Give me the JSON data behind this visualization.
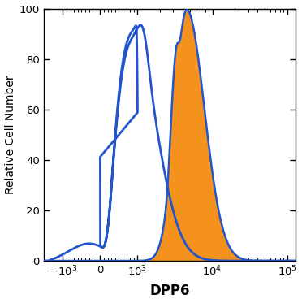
{
  "title": "",
  "xlabel": "DPP6",
  "ylabel": "Relative Cell Number",
  "ylim": [
    0,
    100
  ],
  "linthresh": 1000,
  "linscale": 0.45,
  "blue_color": "#2255cc",
  "orange_color": "#f5921e",
  "blue_linewidth": 2.0,
  "orange_linewidth": 1.8,
  "bg_color": "#ffffff",
  "xlabel_fontsize": 12,
  "ylabel_fontsize": 10,
  "tick_fontsize": 9.5
}
